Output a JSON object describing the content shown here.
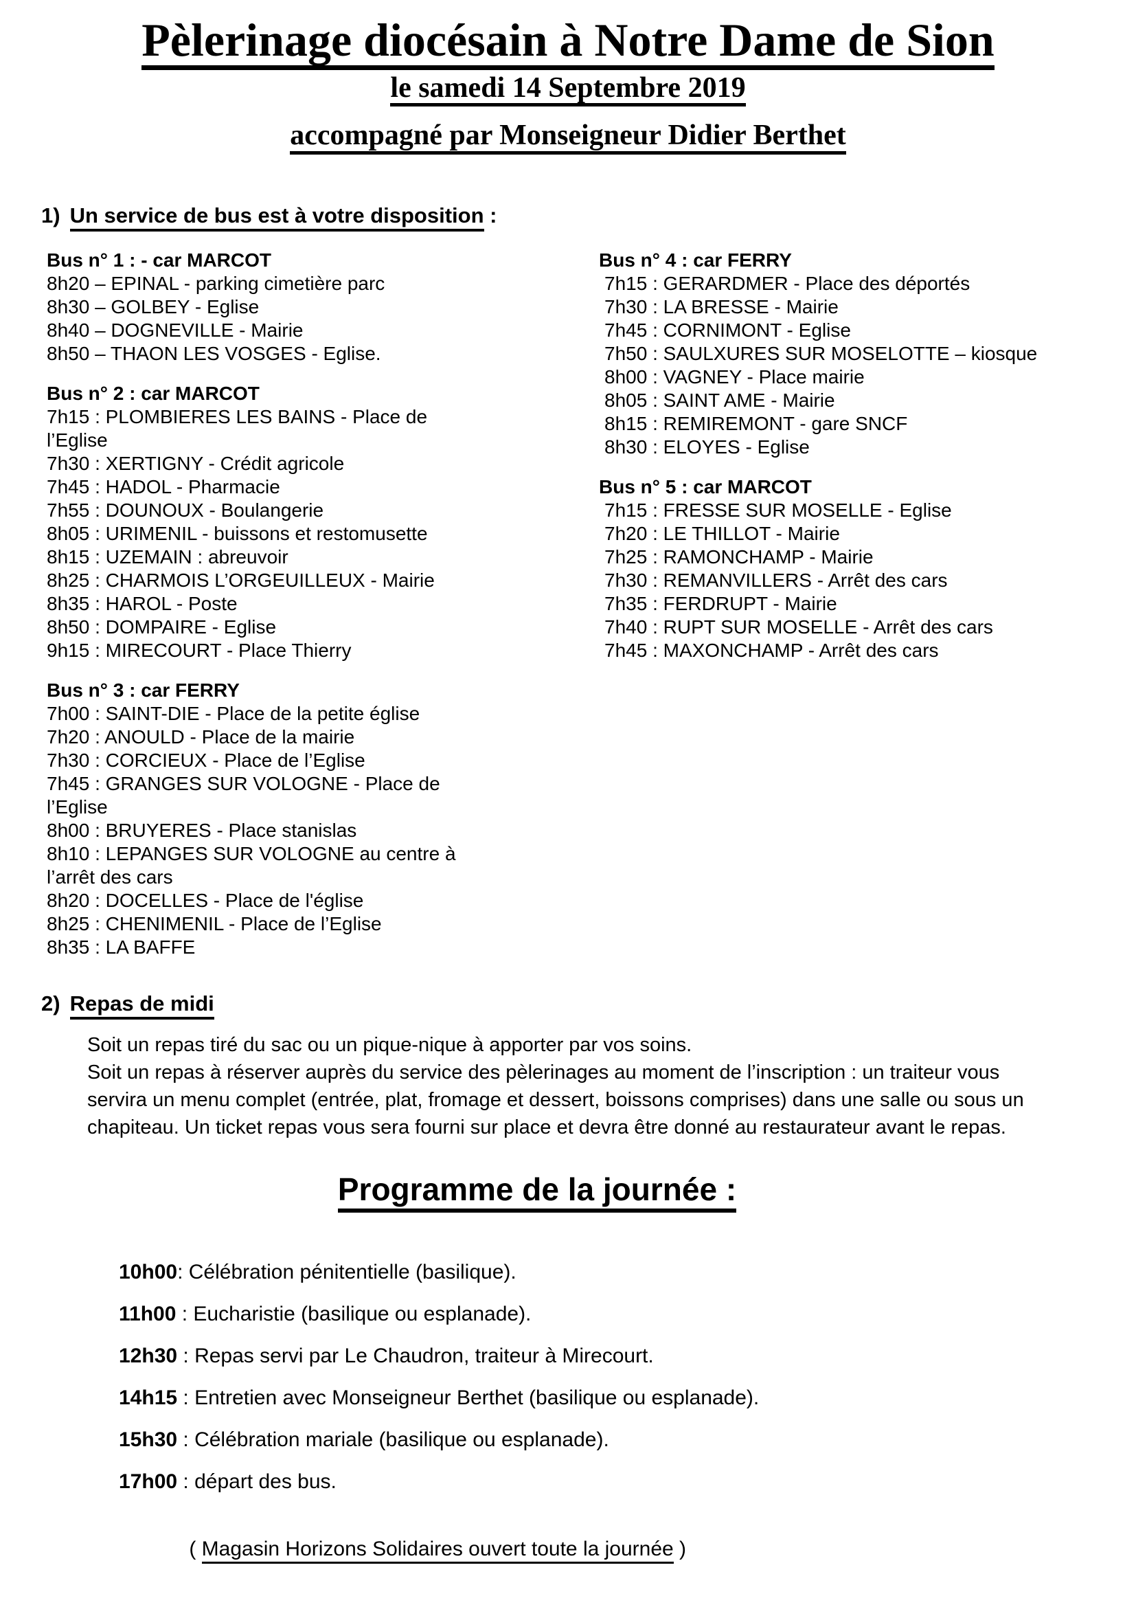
{
  "header": {
    "title": "Pèlerinage diocésain à Notre Dame de Sion",
    "date": "le samedi 14 Septembre 2019",
    "accompanied": "accompagné par Monseigneur Didier Berthet"
  },
  "section1": {
    "num": "1)",
    "heading": "Un service de bus est à votre disposition",
    "suffix": " :"
  },
  "buses": [
    {
      "header": "Bus n° 1 : - car MARCOT",
      "stops": [
        "8h20 – EPINAL - parking cimetière parc",
        "8h30 – GOLBEY - Eglise",
        "8h40 – DOGNEVILLE - Mairie",
        "8h50 – THAON LES VOSGES - Eglise."
      ]
    },
    {
      "header": "Bus n° 2 : car MARCOT",
      "stops": [
        "7h15 : PLOMBIERES LES BAINS - Place de l’Eglise",
        "7h30 : XERTIGNY - Crédit agricole",
        "7h45 : HADOL - Pharmacie",
        "7h55 : DOUNOUX - Boulangerie",
        "8h05 : URIMENIL - buissons et restomusette",
        "8h15 : UZEMAIN : abreuvoir",
        "8h25 : CHARMOIS L’ORGEUILLEUX - Mairie",
        "8h35 : HAROL - Poste",
        "8h50 : DOMPAIRE - Eglise",
        "9h15 : MIRECOURT - Place Thierry"
      ]
    },
    {
      "header": "Bus n° 3 : car FERRY",
      "stops": [
        "7h00 : SAINT-DIE - Place de la petite église",
        "7h20 : ANOULD - Place de la mairie",
        "7h30 : CORCIEUX - Place de l’Eglise",
        "7h45 : GRANGES SUR VOLOGNE - Place de l’Eglise",
        "8h00 : BRUYERES - Place stanislas",
        "8h10 : LEPANGES SUR VOLOGNE au centre à l’arrêt des cars",
        "8h20 : DOCELLES - Place de l'église",
        "8h25 : CHENIMENIL - Place de l’Eglise",
        "8h35 : LA BAFFE"
      ]
    },
    {
      "header": "Bus n° 4 :  car FERRY",
      "stops": [
        "7h15 : GERARDMER - Place des déportés",
        "7h30 : LA BRESSE - Mairie",
        "7h45 : CORNIMONT - Eglise",
        "7h50 : SAULXURES SUR MOSELOTTE – kiosque",
        "8h00 : VAGNEY - Place mairie",
        "8h05 : SAINT AME - Mairie",
        "8h15 : REMIREMONT - gare SNCF",
        "8h30 : ELOYES - Eglise"
      ]
    },
    {
      "header": "Bus n° 5 :  car MARCOT",
      "stops": [
        "7h15 : FRESSE SUR MOSELLE - Eglise",
        "7h20 : LE THILLOT - Mairie",
        "7h25 : RAMONCHAMP - Mairie",
        "7h30 : REMANVILLERS - Arrêt des cars",
        "7h35 : FERDRUPT - Mairie",
        "7h40 : RUPT SUR MOSELLE - Arrêt des cars",
        "7h45 : MAXONCHAMP - Arrêt des cars"
      ]
    }
  ],
  "section2": {
    "num": "2)",
    "heading": "Repas de midi",
    "para1": "Soit un repas tiré du sac ou un pique-nique à apporter par vos soins.",
    "para2": "Soit un repas à réserver auprès du service des pèlerinages au moment de l’inscription : un traiteur vous servira un menu complet (entrée, plat, fromage et dessert, boissons comprises) dans une salle ou sous un chapiteau. Un ticket repas vous sera fourni sur place et devra être donné au restaurateur avant le repas."
  },
  "program": {
    "heading": "Programme de la journée :",
    "items": [
      {
        "time": "10h00",
        "desc": ": Célébration pénitentielle (basilique)."
      },
      {
        "time": "11h00",
        "desc": " : Eucharistie (basilique ou esplanade)."
      },
      {
        "time": "12h30",
        "desc": " : Repas servi par Le Chaudron, traiteur à Mirecourt."
      },
      {
        "time": "14h15",
        "desc": " : Entretien avec Monseigneur Berthet (basilique ou esplanade)."
      },
      {
        "time": "15h30",
        "desc": " : Célébration mariale (basilique ou esplanade)."
      },
      {
        "time": "17h00",
        "desc": " : départ des bus."
      }
    ],
    "note_open": "( ",
    "note_text": "Magasin Horizons Solidaires ouvert toute la journée",
    "note_close": " )"
  }
}
